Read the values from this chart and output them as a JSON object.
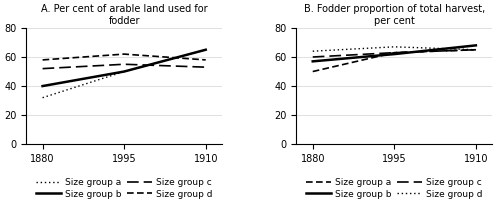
{
  "x_positions": [
    0,
    1,
    2
  ],
  "x_labels": [
    "1880",
    "1995",
    "1910"
  ],
  "panel_A": {
    "title": "A. Per cent of arable land used for\nfodder",
    "group_a": [
      32,
      50,
      65
    ],
    "group_b": [
      40,
      50,
      65
    ],
    "group_c": [
      52,
      55,
      53
    ],
    "group_d": [
      58,
      62,
      58
    ]
  },
  "panel_B": {
    "title": "B. Fodder proportion of total harvest,\nper cent",
    "group_a": [
      50,
      63,
      65
    ],
    "group_b": [
      57,
      62,
      68
    ],
    "group_c": [
      60,
      63,
      65
    ],
    "group_d": [
      64,
      67,
      65
    ]
  },
  "ylim": [
    0,
    80
  ],
  "yticks": [
    0,
    20,
    40,
    60,
    80
  ],
  "line_color": "#000000",
  "background_color": "#ffffff",
  "fontsize_title": 7,
  "fontsize_tick": 7,
  "fontsize_legend": 6.5
}
